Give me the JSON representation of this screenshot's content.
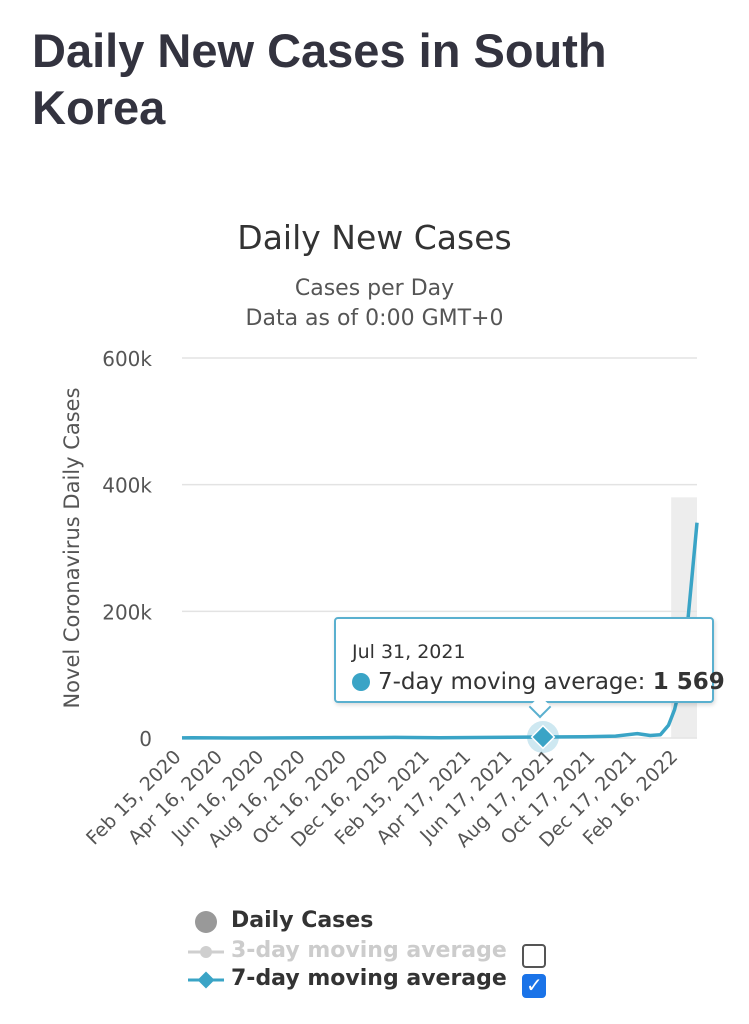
{
  "page": {
    "title": "Daily New Cases in South Korea"
  },
  "chart_data": {
    "type": "line",
    "title": "Daily New Cases",
    "subtitle_1": "Cases per Day",
    "subtitle_2": "Data as of 0:00 GMT+0",
    "ylabel": "Novel Coronavirus Daily Cases",
    "ylim": [
      0,
      600000
    ],
    "yticks": [
      {
        "value": 0,
        "label": "0"
      },
      {
        "value": 200000,
        "label": "200k"
      },
      {
        "value": 400000,
        "label": "400k"
      },
      {
        "value": 600000,
        "label": "600k"
      }
    ],
    "x_tick_labels": [
      {
        "date": "2020-02-15",
        "label": "Feb 15, 2020"
      },
      {
        "date": "2020-04-16",
        "label": "Apr 16, 2020"
      },
      {
        "date": "2020-06-16",
        "label": "Jun 16, 2020"
      },
      {
        "date": "2020-08-16",
        "label": "Aug 16, 2020"
      },
      {
        "date": "2020-10-16",
        "label": "Oct 16, 2020"
      },
      {
        "date": "2020-12-16",
        "label": "Dec 16, 2020"
      },
      {
        "date": "2021-02-15",
        "label": "Feb 15, 2021"
      },
      {
        "date": "2021-04-17",
        "label": "Apr 17, 2021"
      },
      {
        "date": "2021-06-17",
        "label": "Jun 17, 2021"
      },
      {
        "date": "2021-08-17",
        "label": "Aug 17, 2021"
      },
      {
        "date": "2021-10-17",
        "label": "Oct 17, 2021"
      },
      {
        "date": "2021-12-17",
        "label": "Dec 17, 2021"
      },
      {
        "date": "2022-02-16",
        "label": "Feb 16, 2022"
      }
    ],
    "x_range": [
      "2020-02-15",
      "2022-03-15"
    ],
    "grid": true,
    "series": [
      {
        "name": "7-day moving average",
        "color": "#3aa4c6",
        "points": [
          {
            "x": "2020-02-15",
            "y": 100
          },
          {
            "x": "2020-03-01",
            "y": 500
          },
          {
            "x": "2020-05-01",
            "y": 20
          },
          {
            "x": "2020-09-01",
            "y": 300
          },
          {
            "x": "2020-12-25",
            "y": 1000
          },
          {
            "x": "2021-03-01",
            "y": 400
          },
          {
            "x": "2021-07-31",
            "y": 1569
          },
          {
            "x": "2021-10-01",
            "y": 2000
          },
          {
            "x": "2021-11-15",
            "y": 3000
          },
          {
            "x": "2021-12-17",
            "y": 7000
          },
          {
            "x": "2022-01-05",
            "y": 4000
          },
          {
            "x": "2022-01-20",
            "y": 5000
          },
          {
            "x": "2022-02-01",
            "y": 20000
          },
          {
            "x": "2022-02-10",
            "y": 45000
          },
          {
            "x": "2022-02-20",
            "y": 90000
          },
          {
            "x": "2022-03-01",
            "y": 180000
          },
          {
            "x": "2022-03-08",
            "y": 260000
          },
          {
            "x": "2022-03-15",
            "y": 340000
          }
        ]
      }
    ],
    "tooltip": {
      "date": "Jul 31, 2021",
      "x": "2021-07-31",
      "series_label": "7-day moving average:",
      "value": "1 569"
    },
    "legend": [
      {
        "label": "Daily Cases",
        "color": "#999999",
        "marker": "circle"
      },
      {
        "label": "3-day moving average",
        "color": "#cfcfcf",
        "marker": "circle-line",
        "checked": false
      },
      {
        "label": "7-day moving average",
        "color": "#3aa4c6",
        "marker": "diamond-line",
        "checked": true
      }
    ]
  }
}
